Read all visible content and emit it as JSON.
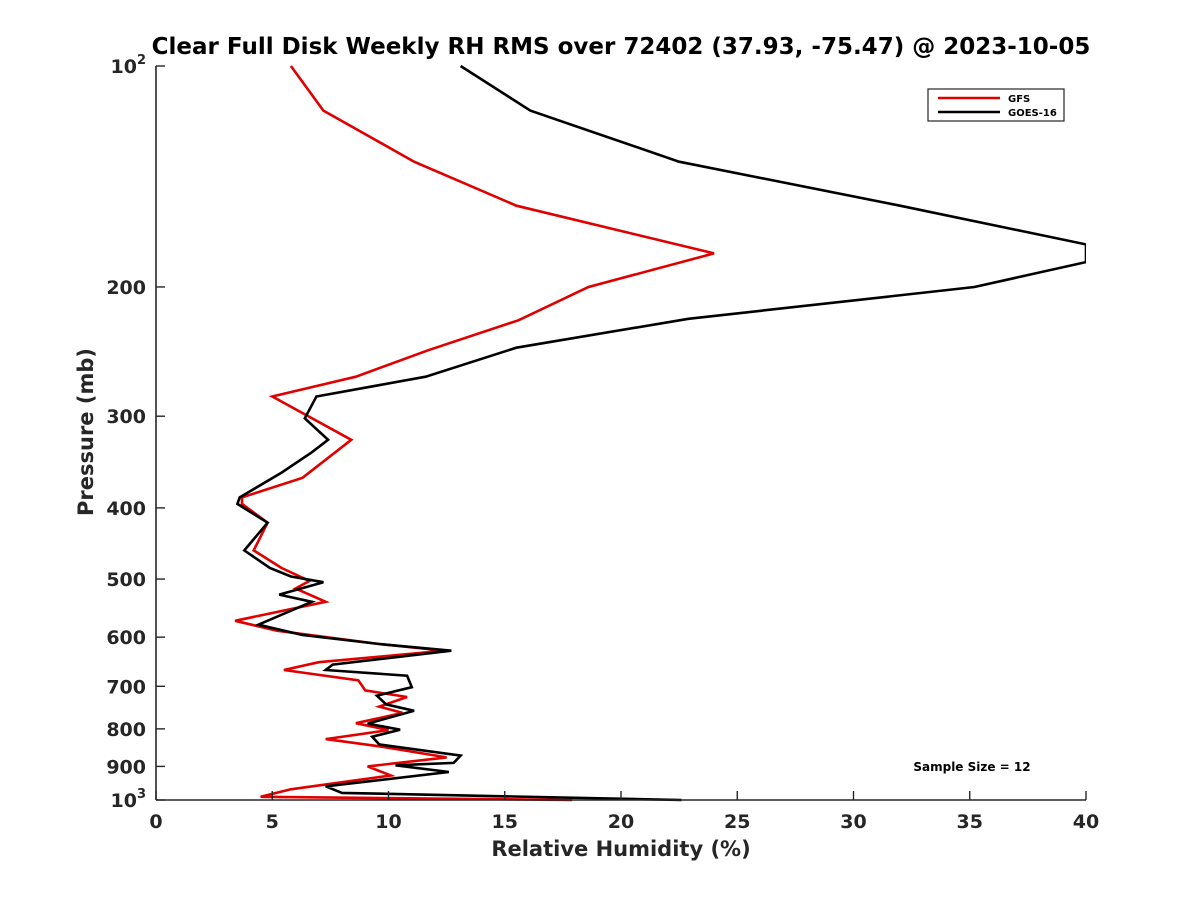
{
  "chart_data": {
    "type": "line",
    "title": "Clear Full Disk Weekly RH RMS over 72402 (37.93, -75.47) @ 2023-10-05",
    "xlabel": "Relative Humidity (%)",
    "ylabel": "Pressure (mb)",
    "xlim": [
      0,
      40
    ],
    "ylim": [
      100,
      1000
    ],
    "yscale": "log",
    "y_reversed": true,
    "x_ticks": [
      "0",
      "5",
      "10",
      "15",
      "20",
      "25",
      "30",
      "35",
      "40"
    ],
    "y_ticks": [
      {
        "value": 100,
        "label": "10",
        "sup": "2"
      },
      {
        "value": 200,
        "label": "200",
        "sup": ""
      },
      {
        "value": 300,
        "label": "300",
        "sup": ""
      },
      {
        "value": 400,
        "label": "400",
        "sup": ""
      },
      {
        "value": 500,
        "label": "500",
        "sup": ""
      },
      {
        "value": 600,
        "label": "600",
        "sup": ""
      },
      {
        "value": 700,
        "label": "700",
        "sup": ""
      },
      {
        "value": 800,
        "label": "800",
        "sup": ""
      },
      {
        "value": 900,
        "label": "900",
        "sup": ""
      },
      {
        "value": 1000,
        "label": "10",
        "sup": "3"
      }
    ],
    "legend_position": "top-right",
    "annotation": "Sample Size = 12",
    "series": [
      {
        "name": "GFS",
        "color": "#e00000",
        "points": [
          [
            5.8,
            100
          ],
          [
            7.2,
            115
          ],
          [
            11.1,
            135
          ],
          [
            15.5,
            155
          ],
          [
            24.0,
            180
          ],
          [
            18.6,
            200
          ],
          [
            15.6,
            222
          ],
          [
            11.7,
            244
          ],
          [
            8.6,
            265
          ],
          [
            5.0,
            282
          ],
          [
            8.4,
            323
          ],
          [
            6.3,
            364
          ],
          [
            3.7,
            387
          ],
          [
            3.7,
            395
          ],
          [
            4.8,
            419
          ],
          [
            4.2,
            457
          ],
          [
            5.4,
            483
          ],
          [
            6.6,
            503
          ],
          [
            6.0,
            515
          ],
          [
            7.3,
            537
          ],
          [
            3.4,
            570
          ],
          [
            5.2,
            588
          ],
          [
            9.6,
            613
          ],
          [
            12.4,
            626
          ],
          [
            7.0,
            649
          ],
          [
            5.5,
            665
          ],
          [
            8.7,
            687
          ],
          [
            9.0,
            709
          ],
          [
            10.8,
            724
          ],
          [
            9.6,
            746
          ],
          [
            10.6,
            761
          ],
          [
            8.6,
            786
          ],
          [
            10.0,
            803
          ],
          [
            7.3,
            826
          ],
          [
            9.6,
            845
          ],
          [
            12.5,
            875
          ],
          [
            9.1,
            900
          ],
          [
            10.1,
            926
          ],
          [
            5.8,
            967
          ],
          [
            4.5,
            990
          ],
          [
            17.9,
            1000
          ]
        ]
      },
      {
        "name": "GOES-16",
        "color": "#000000",
        "points": [
          [
            13.1,
            100
          ],
          [
            16.1,
            115
          ],
          [
            22.5,
            135
          ],
          [
            32.0,
            155
          ],
          [
            40.0,
            175
          ],
          [
            40.0,
            185
          ],
          [
            35.2,
            200
          ],
          [
            22.9,
            221
          ],
          [
            15.5,
            242
          ],
          [
            11.6,
            265
          ],
          [
            6.9,
            282
          ],
          [
            6.4,
            302
          ],
          [
            7.4,
            323
          ],
          [
            6.7,
            336
          ],
          [
            5.4,
            358
          ],
          [
            3.6,
            387
          ],
          [
            3.5,
            395
          ],
          [
            4.8,
            419
          ],
          [
            3.8,
            457
          ],
          [
            4.9,
            483
          ],
          [
            5.8,
            496
          ],
          [
            7.2,
            505
          ],
          [
            5.3,
            525
          ],
          [
            6.7,
            537
          ],
          [
            4.4,
            577
          ],
          [
            6.3,
            596
          ],
          [
            9.6,
            613
          ],
          [
            12.7,
            626
          ],
          [
            7.6,
            654
          ],
          [
            7.3,
            665
          ],
          [
            10.8,
            677
          ],
          [
            11.0,
            702
          ],
          [
            9.5,
            721
          ],
          [
            9.9,
            741
          ],
          [
            11.1,
            756
          ],
          [
            9.1,
            787
          ],
          [
            10.5,
            802
          ],
          [
            9.3,
            820
          ],
          [
            9.6,
            840
          ],
          [
            13.1,
            870
          ],
          [
            12.8,
            890
          ],
          [
            10.3,
            897
          ],
          [
            12.6,
            916
          ],
          [
            7.3,
            958
          ],
          [
            8.0,
            978
          ],
          [
            22.6,
            1000
          ]
        ]
      }
    ]
  }
}
